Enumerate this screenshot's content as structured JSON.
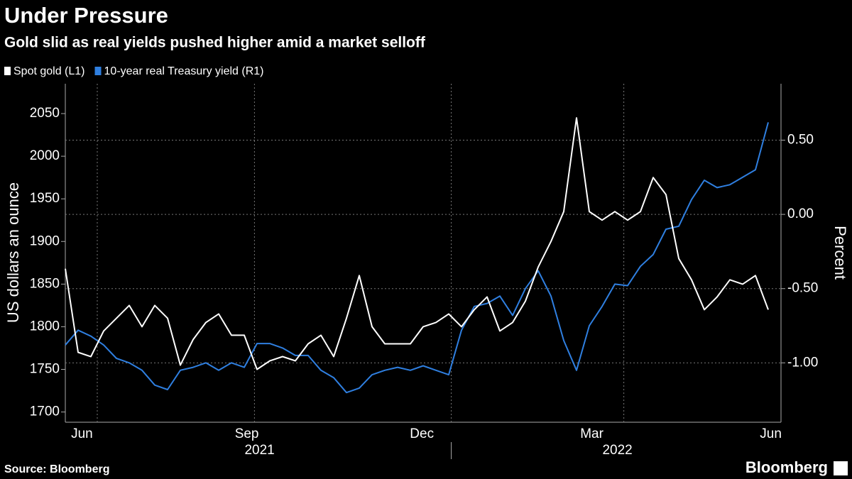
{
  "chart_data": {
    "type": "line",
    "title": "Under Pressure",
    "subtitle": "Gold slid as real yields pushed higher amid a market selloff",
    "ylabel": "US dollars an ounce",
    "y2label": "Percent",
    "source": "Source: Bloomberg",
    "brand": "Bloomberg",
    "xlim": [
      0,
      56
    ],
    "xticks": [
      {
        "value": 1.3,
        "label": "Jun"
      },
      {
        "value": 14.2,
        "label": "Sep"
      },
      {
        "value": 27.9,
        "label": "Dec"
      },
      {
        "value": 41.2,
        "label": "Mar"
      },
      {
        "value": 55.2,
        "label": "Jun"
      }
    ],
    "xgrid": [
      2.5,
      14.8,
      30.2,
      43.7
    ],
    "xgroups": [
      {
        "value": 15.2,
        "label": "2021"
      },
      {
        "value": 43.2,
        "label": "2022"
      }
    ],
    "xgroup_divider": 30.2,
    "ylim": [
      1688,
      2085
    ],
    "yticks": [
      1700,
      1750,
      1800,
      1850,
      1900,
      1950,
      2000,
      2050
    ],
    "y2lim": [
      -1.4,
      0.88
    ],
    "y2ticks": [
      {
        "value": -1.0,
        "label": "-1.00"
      },
      {
        "value": -0.5,
        "label": "-0.50"
      },
      {
        "value": 0,
        "label": "0.00"
      },
      {
        "value": 0.5,
        "label": "0.50"
      }
    ],
    "grid": true,
    "series": [
      {
        "name": "Spot gold (L1)",
        "color": "#ffffff",
        "axis": "y",
        "values": [
          1868,
          1770,
          1765,
          1795,
          1810,
          1825,
          1800,
          1825,
          1810,
          1755,
          1785,
          1805,
          1815,
          1790,
          1790,
          1750,
          1760,
          1765,
          1760,
          1780,
          1790,
          1765,
          1810,
          1860,
          1800,
          1780,
          1780,
          1780,
          1800,
          1805,
          1815,
          1800,
          1820,
          1835,
          1795,
          1805,
          1830,
          1870,
          1900,
          1935,
          2045,
          1935,
          1925,
          1935,
          1925,
          1935,
          1975,
          1955,
          1880,
          1855,
          1820,
          1835,
          1855,
          1850,
          1860,
          1820
        ]
      },
      {
        "name": "10-year real Treasury yield (R1)",
        "color": "#2f7fe0",
        "axis": "y2",
        "values": [
          -0.88,
          -0.78,
          -0.82,
          -0.88,
          -0.97,
          -1.0,
          -1.05,
          -1.15,
          -1.18,
          -1.05,
          -1.03,
          -1.0,
          -1.05,
          -1.0,
          -1.03,
          -0.87,
          -0.87,
          -0.9,
          -0.95,
          -0.95,
          -1.05,
          -1.1,
          -1.2,
          -1.17,
          -1.08,
          -1.05,
          -1.03,
          -1.05,
          -1.02,
          -1.05,
          -1.08,
          -0.78,
          -0.62,
          -0.6,
          -0.55,
          -0.68,
          -0.5,
          -0.38,
          -0.55,
          -0.85,
          -1.05,
          -0.75,
          -0.62,
          -0.47,
          -0.48,
          -0.35,
          -0.27,
          -0.1,
          -0.08,
          0.1,
          0.23,
          0.18,
          0.2,
          0.25,
          0.3,
          0.62
        ]
      }
    ]
  }
}
